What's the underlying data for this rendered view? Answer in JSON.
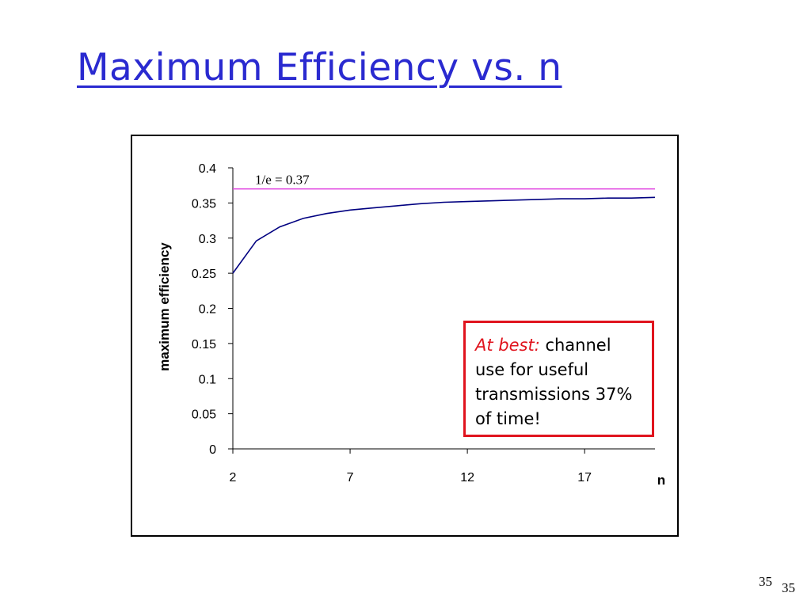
{
  "slide": {
    "title": "Maximum Efficiency vs. n",
    "page_number_1": "35",
    "page_number_2": "35"
  },
  "callout": {
    "emphasis": "At best:",
    "text": " channel use for useful transmissions 37% of time!"
  },
  "chart_data": {
    "type": "line",
    "xlabel": "n",
    "ylabel": "maximum efficiency",
    "xlim": [
      2,
      20
    ],
    "ylim": [
      0,
      0.4
    ],
    "x_ticks": [
      2,
      7,
      12,
      17
    ],
    "x_tick_labels": [
      "2",
      "7",
      "12",
      "17"
    ],
    "y_ticks": [
      0,
      0.05,
      0.1,
      0.15,
      0.2,
      0.25,
      0.3,
      0.35,
      0.4
    ],
    "y_tick_labels": [
      "0",
      "0.05",
      "0.1",
      "0.15",
      "0.2",
      "0.25",
      "0.3",
      "0.35",
      "0.4"
    ],
    "grid": false,
    "series": [
      {
        "x": [
          2,
          3,
          4,
          5,
          6,
          7,
          8,
          9,
          10,
          11,
          12,
          13,
          14,
          15,
          16,
          17,
          18,
          19,
          20
        ],
        "values": [
          0.25,
          0.296,
          0.316,
          0.328,
          0.335,
          0.34,
          0.343,
          0.346,
          0.349,
          0.351,
          0.352,
          0.353,
          0.354,
          0.355,
          0.356,
          0.356,
          0.357,
          0.357,
          0.358
        ],
        "color": "#000080"
      }
    ],
    "reference_lines": [
      {
        "y": 0.37,
        "label": "1/e = 0.37",
        "color": "#e040e0"
      }
    ]
  }
}
